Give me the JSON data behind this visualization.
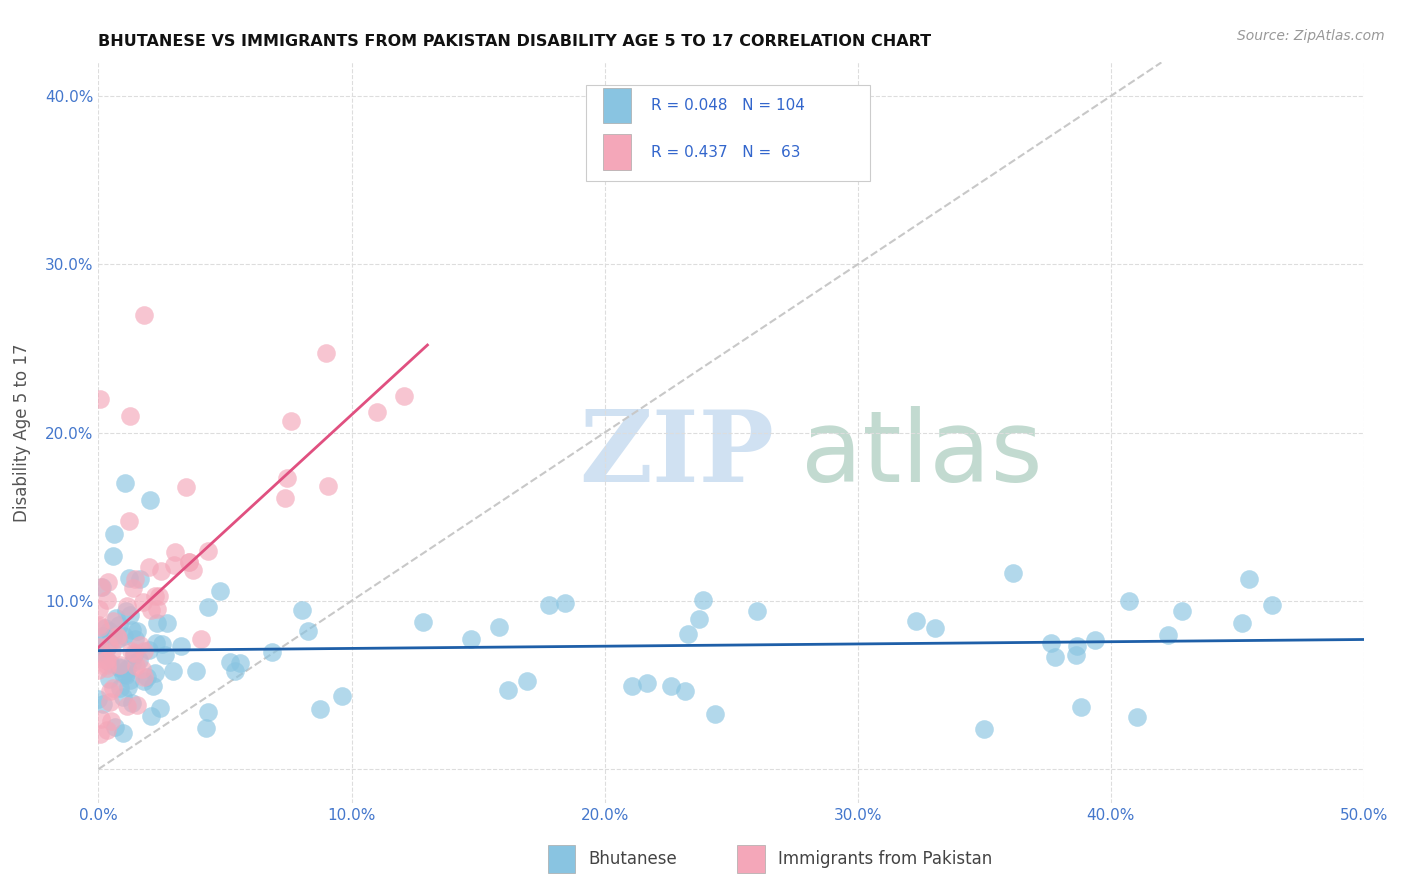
{
  "title": "BHUTANESE VS IMMIGRANTS FROM PAKISTAN DISABILITY AGE 5 TO 17 CORRELATION CHART",
  "source": "Source: ZipAtlas.com",
  "ylabel": "Disability Age 5 to 17",
  "xlim": [
    0.0,
    0.5
  ],
  "ylim": [
    -0.02,
    0.42
  ],
  "xticklabels": [
    "0.0%",
    "10.0%",
    "20.0%",
    "30.0%",
    "40.0%",
    "50.0%"
  ],
  "yticklabels": [
    "",
    "10.0%",
    "20.0%",
    "30.0%",
    "40.0%"
  ],
  "legend_group1_label": "Bhutanese",
  "legend_group2_label": "Immigrants from Pakistan",
  "R1": 0.048,
  "N1": 104,
  "R2": 0.437,
  "N2": 63,
  "color1": "#89C4E1",
  "color2": "#F4A7B9",
  "line1_color": "#1E5FA8",
  "line2_color": "#E05080",
  "diagonal_color": "#C8C8C8",
  "background_color": "#FFFFFF"
}
